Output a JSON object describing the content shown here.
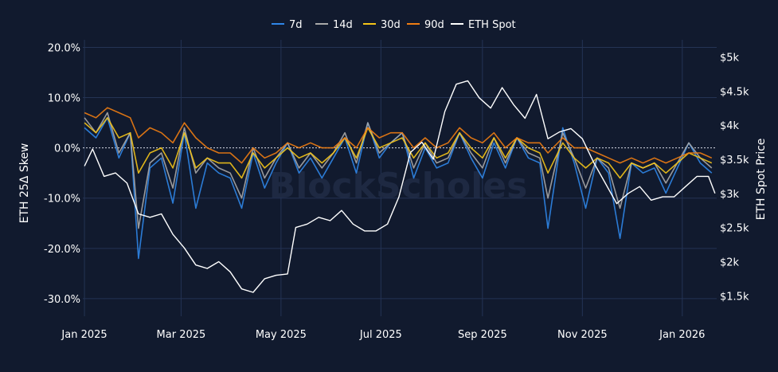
{
  "watermark": "BlockScholes",
  "chart_data": {
    "type": "line",
    "title": "",
    "ylabel": "ETH 25Δ Skew",
    "y2label": "ETH Spot Price",
    "x_range": [
      "2024-12-31",
      "2026-01-22"
    ],
    "ylim": [
      -0.335,
      0.215
    ],
    "y2lim": [
      1200,
      5250
    ],
    "zero_line": true,
    "grid": true,
    "legend_position": "top-center",
    "x_ticks": [
      {
        "date": "2025-01-01",
        "label": "Jan 2025"
      },
      {
        "date": "2025-03-01",
        "label": "Mar 2025"
      },
      {
        "date": "2025-05-01",
        "label": "May 2025"
      },
      {
        "date": "2025-07-01",
        "label": "Jul 2025"
      },
      {
        "date": "2025-09-01",
        "label": "Sep 2025"
      },
      {
        "date": "2025-11-01",
        "label": "Nov 2025"
      },
      {
        "date": "2026-01-01",
        "label": "Jan 2026"
      }
    ],
    "y_ticks": [
      {
        "value": 0.2,
        "label": "20.0%"
      },
      {
        "value": 0.1,
        "label": "10.0%"
      },
      {
        "value": 0.0,
        "label": "0.0%"
      },
      {
        "value": -0.1,
        "label": "-10.0%"
      },
      {
        "value": -0.2,
        "label": "-20.0%"
      },
      {
        "value": -0.3,
        "label": "-30.0%"
      }
    ],
    "y2_ticks": [
      {
        "value": 5000,
        "label": "$5k"
      },
      {
        "value": 4500,
        "label": "$4.5k"
      },
      {
        "value": 4000,
        "label": "$4k"
      },
      {
        "value": 3500,
        "label": "$3.5k"
      },
      {
        "value": 3000,
        "label": "$3k"
      },
      {
        "value": 2500,
        "label": "$2.5k"
      },
      {
        "value": 2000,
        "label": "$2k"
      },
      {
        "value": 1500,
        "label": "$1.5k"
      }
    ],
    "series": [
      {
        "name": "7d",
        "color": "#2f86e8",
        "axis": "y",
        "x": [
          "2025-01-01",
          "2025-01-08",
          "2025-01-15",
          "2025-01-22",
          "2025-01-29",
          "2025-02-03",
          "2025-02-10",
          "2025-02-17",
          "2025-02-24",
          "2025-03-03",
          "2025-03-10",
          "2025-03-17",
          "2025-03-24",
          "2025-03-31",
          "2025-04-07",
          "2025-04-14",
          "2025-04-21",
          "2025-04-28",
          "2025-05-05",
          "2025-05-12",
          "2025-05-19",
          "2025-05-26",
          "2025-06-02",
          "2025-06-09",
          "2025-06-16",
          "2025-06-23",
          "2025-06-30",
          "2025-07-07",
          "2025-07-14",
          "2025-07-21",
          "2025-07-28",
          "2025-08-04",
          "2025-08-11",
          "2025-08-18",
          "2025-08-25",
          "2025-09-01",
          "2025-09-08",
          "2025-09-15",
          "2025-09-22",
          "2025-09-29",
          "2025-10-06",
          "2025-10-11",
          "2025-10-20",
          "2025-10-27",
          "2025-11-03",
          "2025-11-10",
          "2025-11-17",
          "2025-11-24",
          "2025-12-01",
          "2025-12-08",
          "2025-12-15",
          "2025-12-22",
          "2025-12-29",
          "2026-01-05",
          "2026-01-12",
          "2026-01-19"
        ],
        "values": [
          0.04,
          0.02,
          0.06,
          -0.02,
          0.03,
          -0.22,
          -0.04,
          -0.02,
          -0.11,
          0.03,
          -0.12,
          -0.03,
          -0.05,
          -0.06,
          -0.12,
          -0.01,
          -0.08,
          -0.03,
          0.01,
          -0.05,
          -0.02,
          -0.06,
          -0.02,
          0.02,
          -0.05,
          0.05,
          -0.02,
          0.01,
          0.03,
          -0.06,
          0.0,
          -0.04,
          -0.03,
          0.03,
          -0.02,
          -0.06,
          0.01,
          -0.04,
          0.02,
          -0.02,
          -0.03,
          -0.16,
          0.04,
          -0.03,
          -0.12,
          -0.02,
          -0.05,
          -0.18,
          -0.03,
          -0.05,
          -0.04,
          -0.09,
          -0.04,
          0.01,
          -0.03,
          -0.05
        ]
      },
      {
        "name": "14d",
        "color": "#a9a9a9",
        "axis": "y",
        "x": [
          "2025-01-01",
          "2025-01-08",
          "2025-01-15",
          "2025-01-22",
          "2025-01-29",
          "2025-02-03",
          "2025-02-10",
          "2025-02-17",
          "2025-02-24",
          "2025-03-03",
          "2025-03-10",
          "2025-03-17",
          "2025-03-24",
          "2025-03-31",
          "2025-04-07",
          "2025-04-14",
          "2025-04-21",
          "2025-04-28",
          "2025-05-05",
          "2025-05-12",
          "2025-05-19",
          "2025-05-26",
          "2025-06-02",
          "2025-06-09",
          "2025-06-16",
          "2025-06-23",
          "2025-06-30",
          "2025-07-07",
          "2025-07-14",
          "2025-07-21",
          "2025-07-28",
          "2025-08-04",
          "2025-08-11",
          "2025-08-18",
          "2025-08-25",
          "2025-09-01",
          "2025-09-08",
          "2025-09-15",
          "2025-09-22",
          "2025-09-29",
          "2025-10-06",
          "2025-10-11",
          "2025-10-20",
          "2025-10-27",
          "2025-11-03",
          "2025-11-10",
          "2025-11-17",
          "2025-11-24",
          "2025-12-01",
          "2025-12-08",
          "2025-12-15",
          "2025-12-22",
          "2025-12-29",
          "2026-01-05",
          "2026-01-12",
          "2026-01-19"
        ],
        "values": [
          0.06,
          0.03,
          0.07,
          -0.01,
          0.03,
          -0.16,
          -0.03,
          -0.01,
          -0.08,
          0.04,
          -0.05,
          -0.02,
          -0.04,
          -0.05,
          -0.1,
          0.0,
          -0.06,
          -0.02,
          0.01,
          -0.04,
          -0.01,
          -0.04,
          -0.01,
          0.03,
          -0.03,
          0.05,
          -0.01,
          0.01,
          0.03,
          -0.04,
          0.01,
          -0.03,
          -0.02,
          0.03,
          -0.01,
          -0.04,
          0.02,
          -0.03,
          0.02,
          -0.01,
          -0.02,
          -0.1,
          0.03,
          -0.02,
          -0.08,
          -0.02,
          -0.04,
          -0.12,
          -0.03,
          -0.04,
          -0.03,
          -0.07,
          -0.03,
          0.01,
          -0.02,
          -0.04
        ]
      },
      {
        "name": "30d",
        "color": "#f5c518",
        "axis": "y",
        "x": [
          "2025-01-01",
          "2025-01-08",
          "2025-01-15",
          "2025-01-22",
          "2025-01-29",
          "2025-02-03",
          "2025-02-10",
          "2025-02-17",
          "2025-02-24",
          "2025-03-03",
          "2025-03-10",
          "2025-03-17",
          "2025-03-24",
          "2025-03-31",
          "2025-04-07",
          "2025-04-14",
          "2025-04-21",
          "2025-04-28",
          "2025-05-05",
          "2025-05-12",
          "2025-05-19",
          "2025-05-26",
          "2025-06-02",
          "2025-06-09",
          "2025-06-16",
          "2025-06-23",
          "2025-06-30",
          "2025-07-07",
          "2025-07-14",
          "2025-07-21",
          "2025-07-28",
          "2025-08-04",
          "2025-08-11",
          "2025-08-18",
          "2025-08-25",
          "2025-09-01",
          "2025-09-08",
          "2025-09-15",
          "2025-09-22",
          "2025-09-29",
          "2025-10-06",
          "2025-10-11",
          "2025-10-20",
          "2025-10-27",
          "2025-11-03",
          "2025-11-10",
          "2025-11-17",
          "2025-11-24",
          "2025-12-01",
          "2025-12-08",
          "2025-12-15",
          "2025-12-22",
          "2025-12-29",
          "2026-01-05",
          "2026-01-12",
          "2026-01-19"
        ],
        "values": [
          0.05,
          0.03,
          0.06,
          0.02,
          0.03,
          -0.05,
          -0.01,
          0.0,
          -0.04,
          0.03,
          -0.04,
          -0.02,
          -0.03,
          -0.03,
          -0.06,
          -0.01,
          -0.04,
          -0.02,
          0.0,
          -0.02,
          -0.01,
          -0.03,
          -0.01,
          0.02,
          -0.02,
          0.04,
          0.0,
          0.01,
          0.02,
          -0.02,
          0.01,
          -0.02,
          -0.01,
          0.03,
          0.0,
          -0.02,
          0.02,
          -0.02,
          0.02,
          0.0,
          -0.01,
          -0.05,
          0.01,
          -0.02,
          -0.04,
          -0.02,
          -0.03,
          -0.06,
          -0.03,
          -0.04,
          -0.03,
          -0.05,
          -0.03,
          -0.01,
          -0.02,
          -0.03
        ]
      },
      {
        "name": "90d",
        "color": "#f07d12",
        "axis": "y",
        "x": [
          "2025-01-01",
          "2025-01-08",
          "2025-01-15",
          "2025-01-22",
          "2025-01-29",
          "2025-02-03",
          "2025-02-10",
          "2025-02-17",
          "2025-02-24",
          "2025-03-03",
          "2025-03-10",
          "2025-03-17",
          "2025-03-24",
          "2025-03-31",
          "2025-04-07",
          "2025-04-14",
          "2025-04-21",
          "2025-04-28",
          "2025-05-05",
          "2025-05-12",
          "2025-05-19",
          "2025-05-26",
          "2025-06-02",
          "2025-06-09",
          "2025-06-16",
          "2025-06-23",
          "2025-06-30",
          "2025-07-07",
          "2025-07-14",
          "2025-07-21",
          "2025-07-28",
          "2025-08-04",
          "2025-08-11",
          "2025-08-18",
          "2025-08-25",
          "2025-09-01",
          "2025-09-08",
          "2025-09-15",
          "2025-09-22",
          "2025-09-29",
          "2025-10-06",
          "2025-10-11",
          "2025-10-20",
          "2025-10-27",
          "2025-11-03",
          "2025-11-10",
          "2025-11-17",
          "2025-11-24",
          "2025-12-01",
          "2025-12-08",
          "2025-12-15",
          "2025-12-22",
          "2025-12-29",
          "2026-01-05",
          "2026-01-12",
          "2026-01-19"
        ],
        "values": [
          0.07,
          0.06,
          0.08,
          0.07,
          0.06,
          0.02,
          0.04,
          0.03,
          0.01,
          0.05,
          0.02,
          0.0,
          -0.01,
          -0.01,
          -0.03,
          0.0,
          -0.02,
          -0.01,
          0.01,
          0.0,
          0.01,
          0.0,
          0.0,
          0.02,
          0.0,
          0.04,
          0.02,
          0.03,
          0.03,
          0.0,
          0.02,
          0.0,
          0.01,
          0.04,
          0.02,
          0.01,
          0.03,
          0.0,
          0.02,
          0.01,
          0.01,
          -0.01,
          0.02,
          0.0,
          0.0,
          -0.01,
          -0.02,
          -0.03,
          -0.02,
          -0.03,
          -0.02,
          -0.03,
          -0.02,
          -0.01,
          -0.01,
          -0.02
        ]
      },
      {
        "name": "ETH Spot",
        "color": "#ffffff",
        "axis": "y2",
        "x": [
          "2025-01-01",
          "2025-01-06",
          "2025-01-13",
          "2025-01-20",
          "2025-01-27",
          "2025-02-03",
          "2025-02-10",
          "2025-02-17",
          "2025-02-24",
          "2025-03-03",
          "2025-03-10",
          "2025-03-17",
          "2025-03-24",
          "2025-03-31",
          "2025-04-07",
          "2025-04-14",
          "2025-04-21",
          "2025-04-28",
          "2025-05-05",
          "2025-05-10",
          "2025-05-17",
          "2025-05-24",
          "2025-05-31",
          "2025-06-07",
          "2025-06-14",
          "2025-06-21",
          "2025-06-28",
          "2025-07-05",
          "2025-07-12",
          "2025-07-19",
          "2025-07-26",
          "2025-08-02",
          "2025-08-09",
          "2025-08-16",
          "2025-08-23",
          "2025-08-30",
          "2025-09-06",
          "2025-09-13",
          "2025-09-20",
          "2025-09-27",
          "2025-10-04",
          "2025-10-11",
          "2025-10-18",
          "2025-10-25",
          "2025-11-01",
          "2025-11-08",
          "2025-11-15",
          "2025-11-22",
          "2025-11-29",
          "2025-12-06",
          "2025-12-13",
          "2025-12-20",
          "2025-12-27",
          "2026-01-03",
          "2026-01-10",
          "2026-01-17",
          "2026-01-21"
        ],
        "values": [
          3400,
          3650,
          3250,
          3300,
          3150,
          2700,
          2650,
          2700,
          2400,
          2200,
          1950,
          1900,
          2000,
          1850,
          1600,
          1550,
          1750,
          1800,
          1820,
          2500,
          2550,
          2650,
          2600,
          2750,
          2550,
          2450,
          2450,
          2550,
          2950,
          3600,
          3750,
          3500,
          4200,
          4600,
          4650,
          4400,
          4250,
          4550,
          4300,
          4100,
          4450,
          3800,
          3900,
          3950,
          3800,
          3450,
          3150,
          2850,
          3000,
          3100,
          2900,
          2950,
          2950,
          3100,
          3250,
          3250,
          3000
        ]
      }
    ]
  }
}
